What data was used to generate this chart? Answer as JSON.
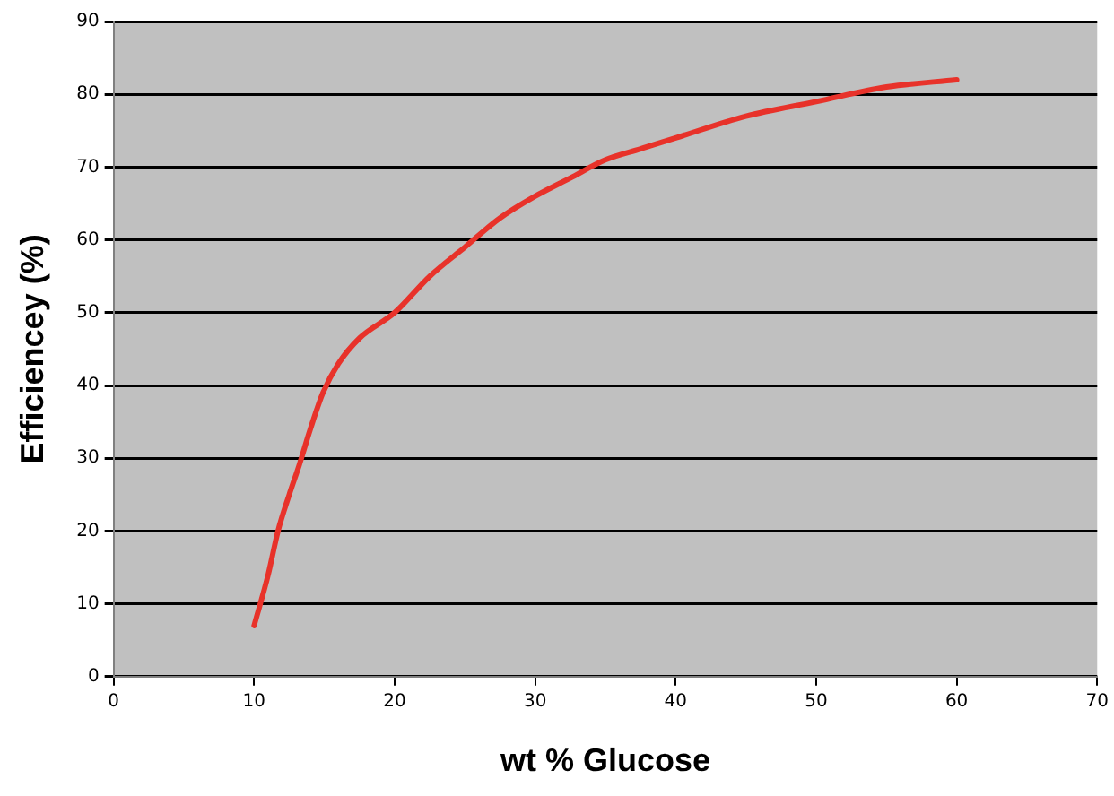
{
  "chart_data": {
    "type": "line",
    "xlabel": "wt % Glucose",
    "ylabel": "Efficiencey (%)",
    "x": [
      10,
      11,
      11.7,
      12.5,
      13.2,
      14,
      14.9,
      16,
      17.5,
      20,
      22.5,
      25,
      27.5,
      30,
      32.5,
      35,
      37.5,
      40,
      45,
      50,
      55,
      60
    ],
    "series": [
      {
        "color": "#e8322a",
        "values": [
          7,
          14,
          20,
          25,
          29,
          34,
          39,
          43,
          46.5,
          50,
          55,
          59,
          63,
          66,
          68.5,
          71,
          72.5,
          74,
          77,
          79,
          81,
          82
        ]
      }
    ],
    "xlim": [
      0,
      70
    ],
    "xticks": [
      0,
      10,
      20,
      30,
      40,
      50,
      60,
      70
    ],
    "ylim": [
      0,
      90
    ],
    "yticks": [
      0,
      10,
      20,
      30,
      40,
      50,
      60,
      70,
      80,
      90
    ],
    "grid": "y",
    "legend": false,
    "marker": "none",
    "line_style": "solid"
  }
}
